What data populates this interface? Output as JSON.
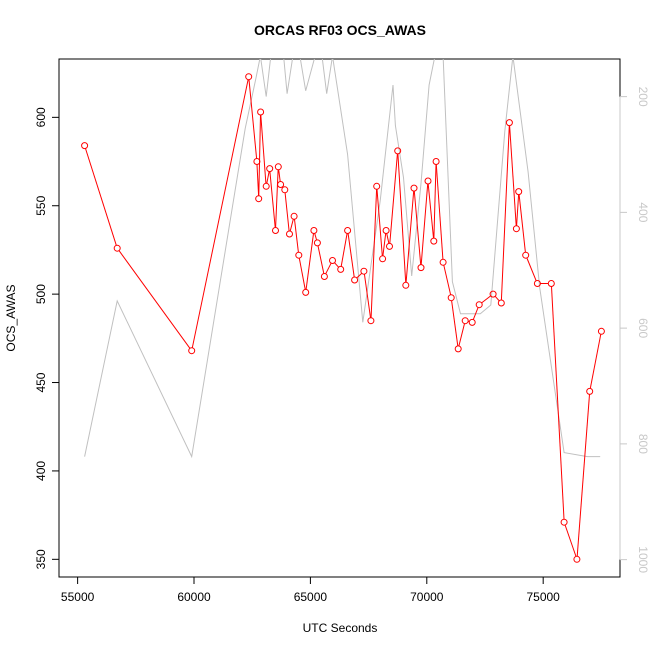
{
  "chart_data": {
    "type": "line",
    "title": "ORCAS RF03 OCS_AWAS",
    "xlabel": "UTC Seconds",
    "ylabel": "OCS_AWAS",
    "xlim": [
      54200,
      78300
    ],
    "ylim": [
      340,
      633
    ],
    "y2lim": [
      1030,
      135
    ],
    "y2_reversed": true,
    "grid": false,
    "legend": "none",
    "x_ticks": [
      55000,
      60000,
      65000,
      70000,
      75000
    ],
    "y_ticks": [
      350,
      400,
      450,
      500,
      550,
      600
    ],
    "y2_ticks": [
      200,
      400,
      600,
      800,
      1000
    ],
    "colors": {
      "series": "#ff0000",
      "background_series": "#c0c0c0"
    },
    "series": [
      {
        "axis": "left",
        "marker": "open-circle",
        "color": "#ff0000",
        "x": [
          55300,
          56700,
          59900,
          62350,
          62700,
          62780,
          62860,
          63100,
          63250,
          63500,
          63620,
          63720,
          63900,
          64100,
          64300,
          64500,
          64800,
          65150,
          65300,
          65600,
          65950,
          66300,
          66600,
          66900,
          67300,
          67600,
          67850,
          68100,
          68250,
          68400,
          68750,
          69100,
          69450,
          69750,
          70050,
          70300,
          70400,
          70700,
          71050,
          71350,
          71650,
          71950,
          72250,
          72850,
          73200,
          73550,
          73850,
          73950,
          74250,
          74750,
          75350,
          75900,
          76450,
          77000,
          77500
        ],
        "y": [
          584,
          526,
          468,
          623,
          575,
          554,
          603,
          561,
          571,
          536,
          572,
          562,
          559,
          534,
          544,
          522,
          501,
          536,
          529,
          510,
          519,
          514,
          536,
          508,
          513,
          485,
          561,
          520,
          536,
          527,
          581,
          505,
          560,
          515,
          564,
          530,
          575,
          518,
          498,
          469,
          485,
          484,
          494,
          500,
          495,
          597,
          537,
          558,
          522,
          506,
          506,
          371,
          350,
          445,
          479
        ]
      },
      {
        "axis": "right",
        "marker": "none",
        "color": "#c0c0c0",
        "x": [
          55300,
          56700,
          59900,
          62200,
          62650,
          62850,
          63100,
          63300,
          63600,
          63850,
          64000,
          64250,
          64550,
          64800,
          65200,
          65500,
          65700,
          65950,
          66600,
          67250,
          68000,
          68550,
          68650,
          69000,
          69350,
          69750,
          70100,
          70350,
          70700,
          71100,
          71450,
          71850,
          72300,
          72750,
          73350,
          73700,
          74350,
          74850,
          75900,
          76900,
          77450
        ],
        "y": [
          822,
          553,
          822,
          255,
          170,
          130,
          200,
          130,
          130,
          130,
          195,
          130,
          130,
          190,
          130,
          130,
          195,
          130,
          300,
          590,
          380,
          180,
          250,
          340,
          510,
          350,
          180,
          130,
          130,
          520,
          575,
          575,
          575,
          560,
          260,
          130,
          330,
          530,
          815,
          822,
          822
        ]
      }
    ]
  }
}
